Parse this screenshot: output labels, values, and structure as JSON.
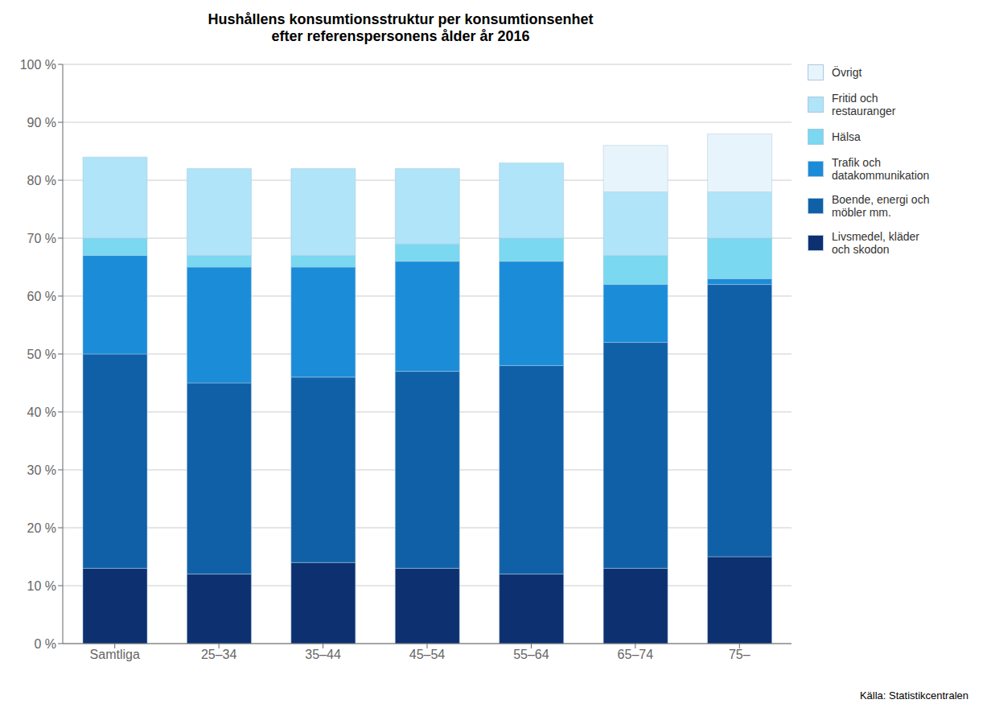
{
  "chart_data": {
    "type": "bar",
    "title": "Hushållens konsumtionsstruktur per konsumtionsenhet\nefter referenspersonens ålder år 2016",
    "categories": [
      "Samtliga",
      "25–34",
      "35–44",
      "45–54",
      "55–64",
      "65–74",
      "75–"
    ],
    "stacked": true,
    "series": [
      {
        "name": "Livsmedel, kläder\noch skodon",
        "color": "#0d3070",
        "values": [
          13,
          12,
          14,
          13,
          12,
          13,
          15
        ]
      },
      {
        "name": "Boende, energi och\nmöbler mm.",
        "color": "#1060a8",
        "values": [
          37,
          33,
          32,
          34,
          36,
          39,
          47
        ]
      },
      {
        "name": "Trafik och\ndatakommunikation",
        "color": "#1b8cd8",
        "values": [
          17,
          20,
          19,
          19,
          18,
          10,
          1
        ]
      },
      {
        "name": "Hälsa",
        "color": "#7ad8f0",
        "values": [
          3,
          2,
          2,
          3,
          4,
          5,
          7
        ]
      },
      {
        "name": "Fritid och\nrestauranger",
        "color": "#b0e4f8",
        "values": [
          14,
          15,
          15,
          13,
          13,
          11,
          8
        ]
      },
      {
        "name": "Övrigt",
        "color": "#e8f4fb",
        "values": [
          0,
          0,
          0,
          0,
          0,
          8,
          10
        ]
      }
    ],
    "ylim": [
      0,
      100
    ],
    "yticks": [
      {
        "value": 0,
        "label": "0 %"
      },
      {
        "value": 10,
        "label": "10 %"
      },
      {
        "value": 20,
        "label": "20 %"
      },
      {
        "value": 30,
        "label": "30 %"
      },
      {
        "value": 40,
        "label": "40 %"
      },
      {
        "value": 50,
        "label": "50 %"
      },
      {
        "value": 60,
        "label": "60 %"
      },
      {
        "value": 70,
        "label": "70 %"
      },
      {
        "value": 80,
        "label": "80 %"
      },
      {
        "value": 90,
        "label": "90 %"
      },
      {
        "value": 100,
        "label": "100 %"
      }
    ],
    "grid": "y",
    "legend": "right",
    "annotations": [
      "Källa: Statistikcentralen"
    ]
  }
}
